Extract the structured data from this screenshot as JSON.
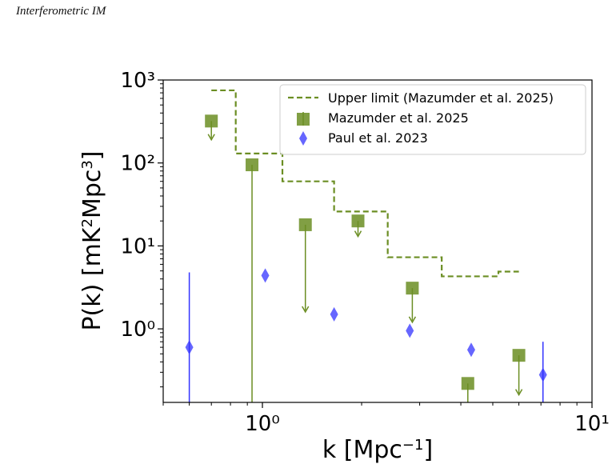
{
  "header": {
    "running_title": "Interferometric IM"
  },
  "colors": {
    "olive": "#6b8e23",
    "blue": "#3333ff"
  },
  "chart_data": {
    "type": "scatter",
    "xlabel": "k [Mpc⁻¹]",
    "ylabel": "P(k) [mK²Mpc³]",
    "xscale": "log",
    "yscale": "log",
    "xlim": [
      0.5,
      10
    ],
    "ylim": [
      0.13,
      1000
    ],
    "x_ticks": [
      "10⁰",
      "10¹"
    ],
    "y_ticks": [
      "10⁰",
      "10¹",
      "10²",
      "10³"
    ],
    "legend_position": "upper right",
    "series": [
      {
        "name": "Upper limit (Mazumder et al. 2025)",
        "kind": "step",
        "style": "dashed",
        "color": "#6b8e23",
        "x": [
          0.7,
          0.83,
          1.15,
          1.65,
          2.4,
          3.5,
          5.2,
          6.0
        ],
        "y": [
          750,
          130,
          60,
          26,
          7.3,
          4.3,
          4.9,
          4.9
        ]
      },
      {
        "name": "Mazumder et al. 2025",
        "kind": "points",
        "marker": "square",
        "color": "#6b8e23",
        "points": [
          {
            "x": 0.7,
            "y": 320,
            "upper_limit_to": 190
          },
          {
            "x": 0.93,
            "y": 95,
            "err_low_to": 0.05
          },
          {
            "x": 1.35,
            "y": 18,
            "upper_limit_to": 1.6
          },
          {
            "x": 1.95,
            "y": 20,
            "upper_limit_to": 13
          },
          {
            "x": 2.85,
            "y": 3.1,
            "upper_limit_to": 1.2
          },
          {
            "x": 4.2,
            "y": 0.22,
            "err_low_to": 0.05
          },
          {
            "x": 6.0,
            "y": 0.48,
            "upper_limit_to": 0.16
          }
        ]
      },
      {
        "name": "Paul et al. 2023",
        "kind": "points",
        "marker": "thin_diamond",
        "color": "#3333ff",
        "points": [
          {
            "x": 0.6,
            "y": 0.6,
            "err_low": 0.05,
            "err_high": 4.8
          },
          {
            "x": 1.02,
            "y": 4.4
          },
          {
            "x": 1.65,
            "y": 1.5
          },
          {
            "x": 2.8,
            "y": 0.95
          },
          {
            "x": 4.3,
            "y": 0.56
          },
          {
            "x": 7.1,
            "y": 0.28,
            "err_low": 0.05,
            "err_high": 0.7
          }
        ]
      }
    ]
  }
}
